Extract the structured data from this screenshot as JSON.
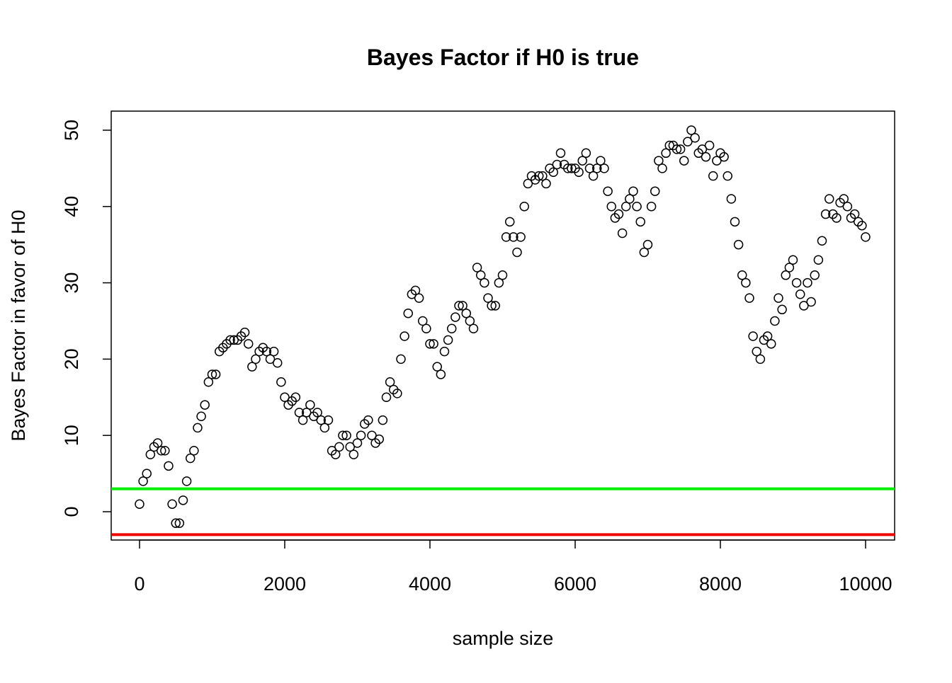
{
  "chart_data": {
    "type": "scatter",
    "title": "Bayes Factor if H0 is true",
    "x_label": "sample size",
    "y_label": "Bayes Factor in favor of H0",
    "color": "#000000",
    "x": [
      0,
      50,
      100,
      150,
      200,
      250,
      300,
      350,
      400,
      450,
      500,
      550,
      600,
      650,
      700,
      750,
      800,
      850,
      900,
      950,
      1000,
      1050,
      1100,
      1150,
      1200,
      1250,
      1300,
      1350,
      1400,
      1450,
      1500,
      1550,
      1600,
      1650,
      1700,
      1750,
      1800,
      1850,
      1900,
      1950,
      2000,
      2050,
      2100,
      2150,
      2200,
      2250,
      2300,
      2350,
      2400,
      2450,
      2500,
      2550,
      2600,
      2650,
      2700,
      2750,
      2800,
      2850,
      2900,
      2950,
      3000,
      3050,
      3100,
      3150,
      3200,
      3250,
      3300,
      3350,
      3400,
      3450,
      3500,
      3550,
      3600,
      3650,
      3700,
      3750,
      3800,
      3850,
      3900,
      3950,
      4000,
      4050,
      4100,
      4150,
      4200,
      4250,
      4300,
      4350,
      4400,
      4450,
      4500,
      4550,
      4600,
      4650,
      4700,
      4750,
      4800,
      4850,
      4900,
      4950,
      5000,
      5050,
      5100,
      5150,
      5200,
      5250,
      5300,
      5350,
      5400,
      5450,
      5500,
      5550,
      5600,
      5650,
      5700,
      5750,
      5800,
      5850,
      5900,
      5950,
      6000,
      6050,
      6100,
      6150,
      6200,
      6250,
      6300,
      6350,
      6400,
      6450,
      6500,
      6550,
      6600,
      6650,
      6700,
      6750,
      6800,
      6850,
      6900,
      6950,
      7000,
      7050,
      7100,
      7150,
      7200,
      7250,
      7300,
      7350,
      7400,
      7450,
      7500,
      7550,
      7600,
      7650,
      7700,
      7750,
      7800,
      7850,
      7900,
      7950,
      8000,
      8050,
      8100,
      8150,
      8200,
      8250,
      8300,
      8350,
      8400,
      8450,
      8500,
      8550,
      8600,
      8650,
      8700,
      8750,
      8800,
      8850,
      8900,
      8950,
      9000,
      9050,
      9100,
      9150,
      9200,
      9250,
      9300,
      9350,
      9400,
      9450,
      9500,
      9550,
      9600,
      9650,
      9700,
      9750,
      9800,
      9850,
      9900,
      9950,
      10000
    ],
    "values": [
      1,
      4,
      5,
      7.5,
      8.5,
      9,
      8,
      8,
      6,
      1,
      -1.5,
      -1.5,
      1.5,
      4,
      7,
      8,
      11,
      12.5,
      14,
      17,
      18,
      18,
      21,
      21.5,
      22,
      22.5,
      22.5,
      22.5,
      23,
      23.5,
      22,
      19,
      20,
      21,
      21.5,
      21,
      20,
      21,
      19.5,
      17,
      15,
      14,
      14.5,
      15,
      13,
      12,
      13,
      14,
      12.5,
      13,
      12,
      11,
      12,
      8,
      7.5,
      8.5,
      10,
      10,
      8.5,
      7.5,
      9,
      10,
      11.5,
      12,
      10,
      9,
      9.5,
      12,
      15,
      17,
      16,
      15.5,
      20,
      23,
      26,
      28.5,
      29,
      28,
      25,
      24,
      22,
      22,
      19,
      18,
      21,
      22.5,
      24,
      25.5,
      27,
      27,
      26,
      25,
      24,
      32,
      31,
      30,
      28,
      27,
      27,
      30,
      31,
      36,
      38,
      36,
      34,
      36,
      40,
      43,
      44,
      43.5,
      44,
      44,
      43,
      45,
      44.5,
      45.5,
      47,
      45.5,
      45,
      45,
      45,
      44.5,
      46,
      47,
      45,
      44,
      45,
      46,
      45,
      42,
      40,
      38.5,
      39,
      36.5,
      40,
      41,
      42,
      40,
      38,
      34,
      35,
      40,
      42,
      46,
      45,
      47,
      48,
      48,
      47.5,
      47.5,
      46,
      48.5,
      50,
      49,
      47,
      47.5,
      46.5,
      48,
      44,
      46,
      47,
      46.5,
      44,
      41,
      38,
      35,
      31,
      30,
      28,
      23,
      21,
      20,
      22.5,
      23,
      22,
      25,
      28,
      26.5,
      31,
      32,
      33,
      30,
      28.5,
      27,
      30,
      27.5,
      31,
      33,
      35.5,
      39,
      41,
      39,
      38.5,
      40.5,
      41,
      40,
      38.5,
      39,
      38,
      37.5,
      36
    ],
    "xlim": [
      -390,
      10400
    ],
    "ylim": [
      -3.71,
      52.5
    ],
    "xticks": [
      0,
      2000,
      4000,
      6000,
      8000,
      10000
    ],
    "yticks": [
      0,
      10,
      20,
      30,
      40,
      50
    ],
    "hlines": [
      {
        "value": 3,
        "color": "#00ee00"
      },
      {
        "value": -3,
        "color": "#ee0000"
      }
    ]
  }
}
